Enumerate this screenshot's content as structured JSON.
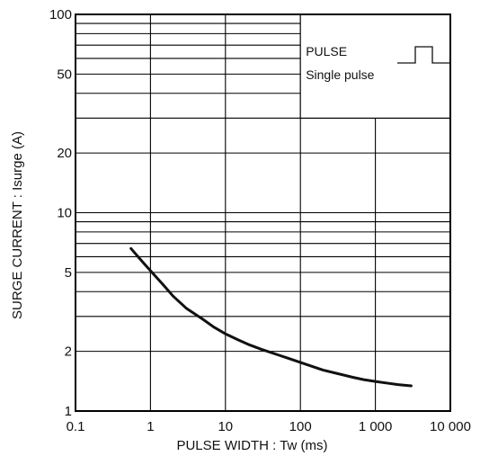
{
  "chart_data": {
    "type": "line",
    "title": "",
    "xlabel": "PULSE  WIDTH : Tw (ms)",
    "ylabel": "SURGE  CURRENT : Isurge (A)",
    "xscale": "log",
    "yscale": "log",
    "xlim": [
      0.1,
      10000
    ],
    "ylim": [
      1,
      100
    ],
    "grid": true,
    "x_tick_values": [
      0.1,
      1,
      10,
      100,
      1000,
      10000
    ],
    "x_tick_labels": [
      "0.1",
      "1",
      "10",
      "100",
      "1 000",
      "10 000"
    ],
    "y_tick_values": [
      1,
      2,
      5,
      10,
      20,
      50,
      100
    ],
    "y_tick_labels": [
      "1",
      "2",
      "5",
      "10",
      "20",
      "50",
      "100"
    ],
    "legend": {
      "placement": "top-right",
      "lines": [
        "PULSE",
        "Single pulse"
      ],
      "symbol": "single-pulse-waveform"
    },
    "series": [
      {
        "x": [
          0.55,
          0.8,
          1,
          1.5,
          2,
          3,
          5,
          7,
          10,
          15,
          20,
          30,
          50,
          70,
          100,
          150,
          200,
          300,
          500,
          700,
          1000,
          1500,
          2000,
          3000
        ],
        "y": [
          6.6,
          5.6,
          5.1,
          4.3,
          3.8,
          3.3,
          2.9,
          2.65,
          2.45,
          2.28,
          2.17,
          2.05,
          1.92,
          1.84,
          1.76,
          1.67,
          1.61,
          1.55,
          1.48,
          1.44,
          1.41,
          1.38,
          1.36,
          1.34
        ]
      }
    ]
  }
}
